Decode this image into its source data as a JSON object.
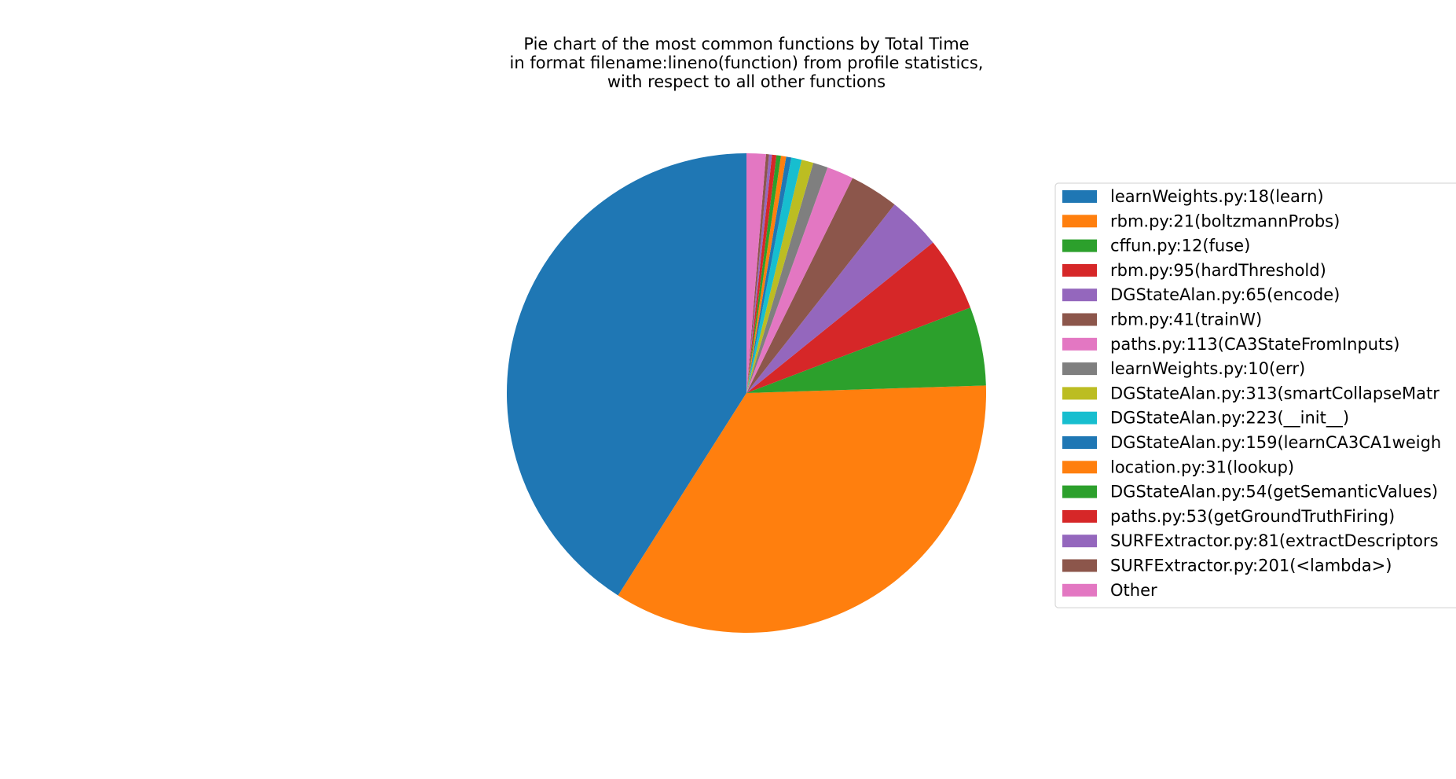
{
  "chart_data": {
    "type": "pie",
    "title_lines": [
      "Pie chart of the most common functions by Total Time",
      "in format filename:lineno(function) from profile statistics,",
      "with respect to all other functions"
    ],
    "start_angle_deg": 90,
    "direction": "counterclockwise",
    "legend_position": "right",
    "slices": [
      {
        "label": "learnWeights.py:18(learn)",
        "value": 41.0,
        "color": "#1f77b4"
      },
      {
        "label": "rbm.py:21(boltzmannProbs)",
        "value": 34.5,
        "color": "#ff7f0e"
      },
      {
        "label": "cffun.py:12(fuse)",
        "value": 5.3,
        "color": "#2ca02c"
      },
      {
        "label": "rbm.py:95(hardThreshold)",
        "value": 5.0,
        "color": "#d62728"
      },
      {
        "label": "DGStateAlan.py:65(encode)",
        "value": 3.6,
        "color": "#9467bd"
      },
      {
        "label": "rbm.py:41(trainW)",
        "value": 3.3,
        "color": "#8c564b"
      },
      {
        "label": "paths.py:113(CA3StateFromInputs)",
        "value": 1.8,
        "color": "#e377c2"
      },
      {
        "label": "learnWeights.py:10(err)",
        "value": 1.0,
        "color": "#7f7f7f"
      },
      {
        "label": "DGStateAlan.py:313(smartCollapseMatr",
        "value": 0.8,
        "color": "#bcbd22"
      },
      {
        "label": "DGStateAlan.py:223(__init__)",
        "value": 0.7,
        "color": "#17becf"
      },
      {
        "label": "DGStateAlan.py:159(learnCA3CA1weigh",
        "value": 0.35,
        "color": "#1f77b4"
      },
      {
        "label": "location.py:31(lookup)",
        "value": 0.35,
        "color": "#ff7f0e"
      },
      {
        "label": "DGStateAlan.py:54(getSemanticValues)",
        "value": 0.3,
        "color": "#2ca02c"
      },
      {
        "label": "paths.py:53(getGroundTruthFiring)",
        "value": 0.3,
        "color": "#d62728"
      },
      {
        "label": "SURFExtractor.py:81(extractDescriptors",
        "value": 0.2,
        "color": "#9467bd"
      },
      {
        "label": "SURFExtractor.py:201(<lambda>)",
        "value": 0.2,
        "color": "#8c564b"
      },
      {
        "label": "Other",
        "value": 1.3,
        "color": "#e377c2"
      }
    ]
  }
}
